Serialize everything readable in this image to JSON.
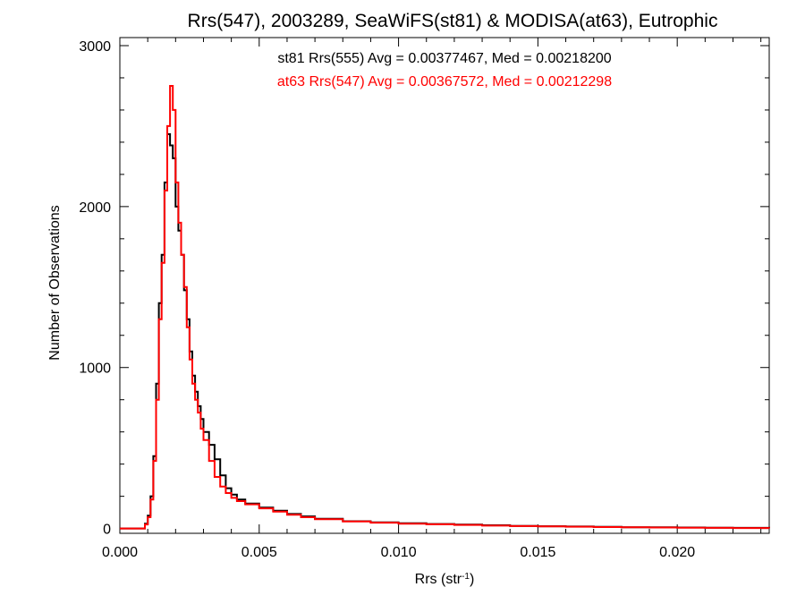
{
  "chart_data": {
    "type": "line",
    "title": "Rrs(547), 2003289, SeaWiFS(st81) & MODISA(at63), Eutrophic",
    "xlabel": "Rrs (str",
    "xlabel_sup": "-1",
    "xlabel_end": ")",
    "ylabel": "Number of Observations",
    "xlim": [
      0.0,
      0.0233
    ],
    "ylim": [
      -30,
      3050
    ],
    "x_ticks": [
      0.0,
      0.005,
      0.01,
      0.015,
      0.02
    ],
    "x_tick_labels": [
      "0.000",
      "0.005",
      "0.010",
      "0.015",
      "0.020"
    ],
    "y_ticks": [
      0,
      1000,
      2000,
      3000
    ],
    "y_tick_labels": [
      "0",
      "1000",
      "2000",
      "3000"
    ],
    "grid": false,
    "legend": "top-center",
    "series": [
      {
        "name": "st81 Rrs(555) Avg = 0.00377467, Med = 0.00218200",
        "color": "#000000",
        "points": [
          [
            0.0,
            0
          ],
          [
            0.0008,
            0
          ],
          [
            0.0009,
            30
          ],
          [
            0.001,
            80
          ],
          [
            0.0011,
            200
          ],
          [
            0.0012,
            450
          ],
          [
            0.0013,
            900
          ],
          [
            0.0014,
            1400
          ],
          [
            0.0015,
            1700
          ],
          [
            0.0016,
            2150
          ],
          [
            0.0017,
            2450
          ],
          [
            0.0018,
            2380
          ],
          [
            0.0019,
            2300
          ],
          [
            0.002,
            2000
          ],
          [
            0.0021,
            1850
          ],
          [
            0.0022,
            1700
          ],
          [
            0.0023,
            1480
          ],
          [
            0.0024,
            1300
          ],
          [
            0.0025,
            1100
          ],
          [
            0.0026,
            950
          ],
          [
            0.0027,
            850
          ],
          [
            0.0028,
            760
          ],
          [
            0.0029,
            680
          ],
          [
            0.003,
            600
          ],
          [
            0.0032,
            520
          ],
          [
            0.0034,
            430
          ],
          [
            0.0036,
            330
          ],
          [
            0.0038,
            250
          ],
          [
            0.004,
            210
          ],
          [
            0.0042,
            180
          ],
          [
            0.0045,
            155
          ],
          [
            0.005,
            130
          ],
          [
            0.0055,
            110
          ],
          [
            0.006,
            90
          ],
          [
            0.0065,
            75
          ],
          [
            0.007,
            60
          ],
          [
            0.008,
            45
          ],
          [
            0.009,
            38
          ],
          [
            0.01,
            32
          ],
          [
            0.011,
            28
          ],
          [
            0.012,
            24
          ],
          [
            0.013,
            20
          ],
          [
            0.014,
            16
          ],
          [
            0.015,
            14
          ],
          [
            0.016,
            12
          ],
          [
            0.017,
            10
          ],
          [
            0.018,
            8
          ],
          [
            0.019,
            7
          ],
          [
            0.02,
            6
          ],
          [
            0.021,
            5
          ],
          [
            0.022,
            4
          ],
          [
            0.0233,
            3
          ]
        ]
      },
      {
        "name": "at63 Rrs(547) Avg = 0.00367572, Med = 0.00212298",
        "color": "#ff0000",
        "points": [
          [
            0.0,
            0
          ],
          [
            0.0008,
            0
          ],
          [
            0.0009,
            25
          ],
          [
            0.001,
            70
          ],
          [
            0.0011,
            180
          ],
          [
            0.0012,
            420
          ],
          [
            0.0013,
            800
          ],
          [
            0.0014,
            1300
          ],
          [
            0.0015,
            1650
          ],
          [
            0.0016,
            2100
          ],
          [
            0.0017,
            2500
          ],
          [
            0.0018,
            2750
          ],
          [
            0.0019,
            2600
          ],
          [
            0.002,
            2150
          ],
          [
            0.0021,
            1900
          ],
          [
            0.0022,
            1700
          ],
          [
            0.0023,
            1500
          ],
          [
            0.0024,
            1250
          ],
          [
            0.0025,
            1050
          ],
          [
            0.0026,
            900
          ],
          [
            0.0027,
            800
          ],
          [
            0.0028,
            720
          ],
          [
            0.0029,
            620
          ],
          [
            0.003,
            550
          ],
          [
            0.0032,
            420
          ],
          [
            0.0034,
            320
          ],
          [
            0.0036,
            260
          ],
          [
            0.0038,
            220
          ],
          [
            0.004,
            190
          ],
          [
            0.0042,
            170
          ],
          [
            0.0045,
            150
          ],
          [
            0.005,
            125
          ],
          [
            0.0055,
            105
          ],
          [
            0.006,
            85
          ],
          [
            0.0065,
            70
          ],
          [
            0.007,
            58
          ],
          [
            0.008,
            44
          ],
          [
            0.009,
            36
          ],
          [
            0.01,
            30
          ],
          [
            0.011,
            26
          ],
          [
            0.012,
            22
          ],
          [
            0.013,
            18
          ],
          [
            0.014,
            15
          ],
          [
            0.015,
            13
          ],
          [
            0.016,
            11
          ],
          [
            0.017,
            9
          ],
          [
            0.018,
            8
          ],
          [
            0.019,
            6
          ],
          [
            0.02,
            5
          ],
          [
            0.021,
            4
          ],
          [
            0.022,
            3
          ],
          [
            0.0233,
            2
          ]
        ]
      }
    ]
  }
}
